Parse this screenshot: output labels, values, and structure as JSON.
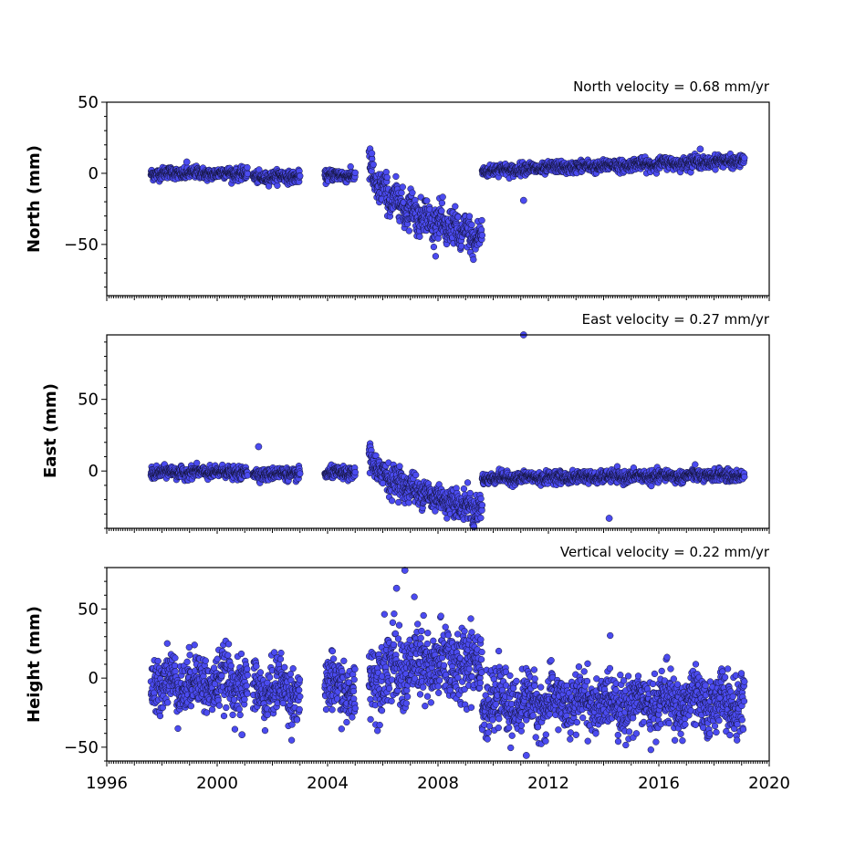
{
  "chart_data": [
    {
      "type": "scatter",
      "ylabel": "North (mm)",
      "annotation": "North velocity = 0.68 mm/yr",
      "xlim": [
        1996,
        2020
      ],
      "ylim": [
        -86,
        50
      ],
      "yticks": [
        50,
        0,
        -50
      ],
      "ytick_labels": [
        "50",
        "0",
        "−50"
      ],
      "marker_color": "#4b4bf0",
      "segments": [
        {
          "x": [
            1997.6,
            2001.1
          ],
          "y": [
            0,
            0
          ],
          "noise": 2
        },
        {
          "x": [
            2001.3,
            2003.0
          ],
          "y": [
            -3,
            -2
          ],
          "noise": 2
        },
        {
          "x": [
            2003.9,
            2005.0
          ],
          "y": [
            -2,
            -1
          ],
          "noise": 2
        },
        {
          "x": [
            2005.5,
            2009.6
          ],
          "y": [
            0,
            -53
          ],
          "noise": 6
        },
        {
          "x": [
            2009.6,
            2019.1
          ],
          "y": [
            2,
            9
          ],
          "noise": 2
        }
      ],
      "outliers": [
        [
          2005.6,
          14
        ],
        [
          1998.9,
          8
        ],
        [
          2011.1,
          -19
        ],
        [
          2017.5,
          17
        ]
      ]
    },
    {
      "type": "scatter",
      "ylabel": "East (mm)",
      "annotation": "East velocity = 0.27 mm/yr",
      "xlim": [
        1996,
        2020
      ],
      "ylim": [
        -40,
        95
      ],
      "yticks": [
        50,
        0
      ],
      "ytick_labels": [
        "50",
        "0"
      ],
      "marker_color": "#4b4bf0",
      "segments": [
        {
          "x": [
            1997.6,
            2001.1
          ],
          "y": [
            -1,
            -1
          ],
          "noise": 2
        },
        {
          "x": [
            2001.3,
            2003.0
          ],
          "y": [
            -2,
            -2
          ],
          "noise": 2
        },
        {
          "x": [
            2003.9,
            2005.0
          ],
          "y": [
            -2,
            -1
          ],
          "noise": 2
        },
        {
          "x": [
            2005.5,
            2009.6
          ],
          "y": [
            8,
            -32
          ],
          "noise": 5
        },
        {
          "x": [
            2009.6,
            2019.1
          ],
          "y": [
            -5,
            -3
          ],
          "noise": 2
        }
      ],
      "outliers": [
        [
          2011.1,
          95
        ],
        [
          2001.5,
          17
        ],
        [
          2014.2,
          -33
        ],
        [
          2009.3,
          -39
        ]
      ]
    },
    {
      "type": "scatter",
      "ylabel": "Height (mm)",
      "annotation": "Vertical velocity = 0.22 mm/yr",
      "xlim": [
        1996,
        2020
      ],
      "ylim": [
        -60,
        80
      ],
      "yticks": [
        50,
        0,
        -50
      ],
      "ytick_labels": [
        "50",
        "0",
        "−50"
      ],
      "xticks": [
        1996,
        2000,
        2004,
        2008,
        2012,
        2016,
        2020
      ],
      "xtick_labels": [
        "1996",
        "2000",
        "2004",
        "2008",
        "2012",
        "2016",
        "2020"
      ],
      "marker_color": "#4b4bf0",
      "segments": [
        {
          "x": [
            1997.6,
            2001.1
          ],
          "y": [
            -3,
            -3
          ],
          "noise": 10
        },
        {
          "x": [
            2001.3,
            2003.0
          ],
          "y": [
            -8,
            -8
          ],
          "noise": 10
        },
        {
          "x": [
            2003.9,
            2005.0
          ],
          "y": [
            -8,
            -8
          ],
          "noise": 10
        },
        {
          "x": [
            2005.5,
            2009.6
          ],
          "y": [
            5,
            12
          ],
          "noise": 14
        },
        {
          "x": [
            2009.6,
            2019.1
          ],
          "y": [
            -18,
            -18
          ],
          "noise": 10
        }
      ],
      "outliers": [
        [
          2006.8,
          78
        ],
        [
          2006.5,
          65
        ],
        [
          2011.2,
          -56
        ],
        [
          2000.9,
          -41
        ]
      ]
    }
  ]
}
